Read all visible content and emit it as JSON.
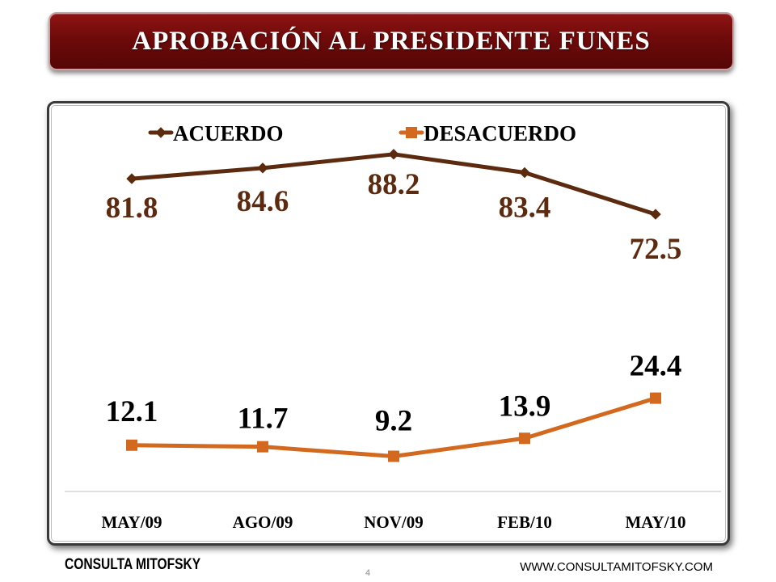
{
  "slide": {
    "title": "APROBACIÓN AL PRESIDENTE FUNES",
    "footer_left": "CONSULTA MITOFSKY",
    "page_number": "4",
    "footer_right": "WWW.CONSULTAMITOFSKY.COM"
  },
  "chart_data": {
    "type": "line",
    "title": "",
    "xlabel": "",
    "ylabel": "",
    "categories": [
      "MAY/09",
      "AGO/09",
      "NOV/09",
      "FEB/10",
      "MAY/10"
    ],
    "series": [
      {
        "name": "ACUERDO",
        "values": [
          81.8,
          84.6,
          88.2,
          83.4,
          72.5
        ],
        "labels": [
          "81.8",
          "84.6",
          "88.2",
          "83.4",
          "72.5"
        ],
        "color": "#5c2a0e",
        "label_color": "#5c2a0e",
        "marker": "diamond"
      },
      {
        "name": "DESACUERDO",
        "values": [
          12.1,
          11.7,
          9.2,
          13.9,
          24.4
        ],
        "labels": [
          "12.1",
          "11.7",
          "9.2",
          "13.9",
          "24.4"
        ],
        "color": "#d2691e",
        "label_color": "#000000",
        "marker": "square"
      }
    ],
    "ylim": [
      0,
      100
    ],
    "grid": false,
    "legend": "top"
  }
}
